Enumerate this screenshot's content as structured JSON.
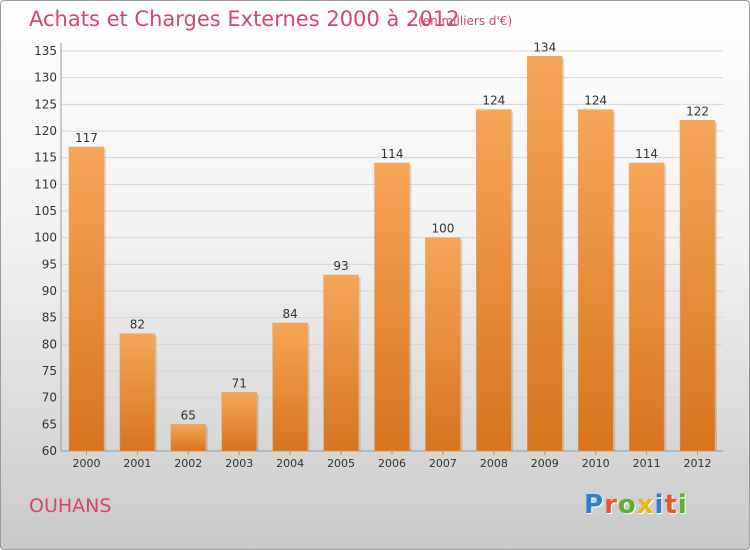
{
  "header": {
    "title": "Achats et Charges Externes 2000 à 2012",
    "subtitle": "(en milliers d'€)"
  },
  "footer": {
    "commune": "OUHANS",
    "logo_text": "Proxiti",
    "logo_letters": [
      {
        "char": "P",
        "color": "#2f7fd1"
      },
      {
        "char": "r",
        "color": "#e05a2b"
      },
      {
        "char": "o",
        "color": "#5bb030"
      },
      {
        "char": "x",
        "color": "#e8b41c"
      },
      {
        "char": "i",
        "color": "#2f7fd1"
      },
      {
        "char": "t",
        "color": "#e05a2b"
      },
      {
        "char": "i",
        "color": "#5bb030"
      }
    ]
  },
  "colors": {
    "bar_top": "#f6a658",
    "bar_bottom": "#d7741f",
    "title": "#d4476b",
    "grid": "#d6d6d6"
  },
  "chart_data": {
    "type": "bar",
    "title": "Achats et Charges Externes 2000 à 2012",
    "categories": [
      "2000",
      "2001",
      "2002",
      "2003",
      "2004",
      "2005",
      "2006",
      "2007",
      "2008",
      "2009",
      "2010",
      "2011",
      "2012"
    ],
    "values": [
      117,
      82,
      65,
      71,
      84,
      93,
      114,
      100,
      124,
      134,
      124,
      114,
      122
    ],
    "ylim": [
      60,
      135
    ],
    "ytick_step": 5,
    "grid": true,
    "xlabel": "",
    "ylabel": ""
  }
}
